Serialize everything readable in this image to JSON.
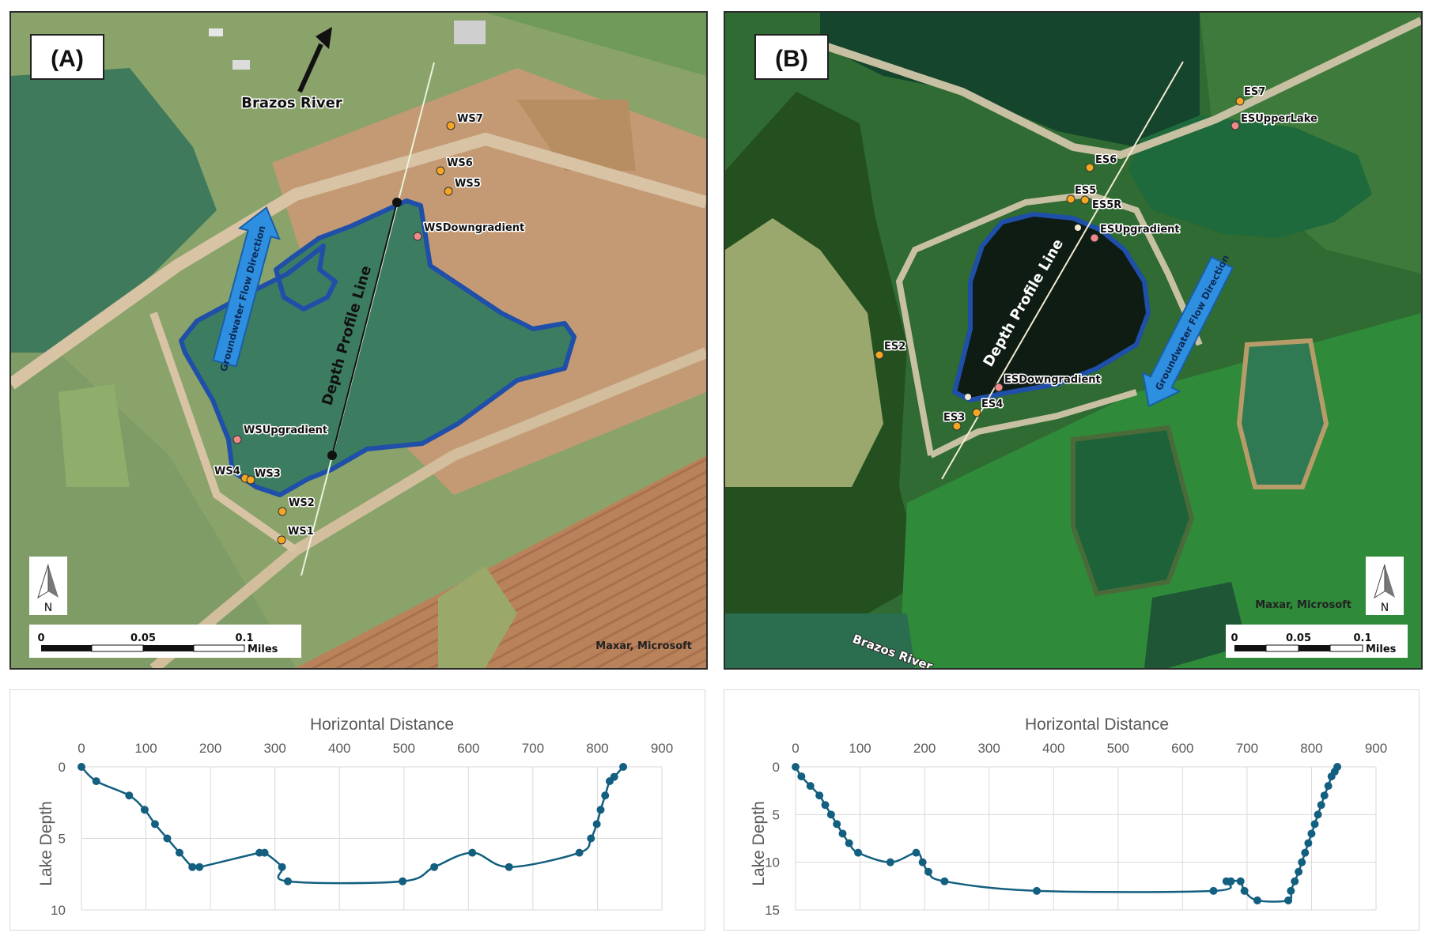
{
  "colors": {
    "lake_outline": "#1f4fa8",
    "flow_arrow": "#2e8fe0",
    "profile_line_a": "#111111",
    "profile_line_b": "#f3ead0",
    "orange_point": "#f5a623",
    "pink_point": "#f08a8a",
    "series": "#135f80"
  },
  "panel_a": {
    "label": "(A)",
    "river_label": "Brazos River",
    "flow_label": "Groundwater Flow Direction",
    "profile_label": "Depth Profile Line",
    "attribution": "Maxar, Microsoft",
    "north": "N",
    "scale": {
      "ticks": [
        "0",
        "0.05",
        "0.1"
      ],
      "unit": "Miles"
    },
    "points": [
      {
        "name": "WS7",
        "type": "orange"
      },
      {
        "name": "WS6",
        "type": "orange"
      },
      {
        "name": "WS5",
        "type": "orange"
      },
      {
        "name": "WSDowngradient",
        "type": "pink"
      },
      {
        "name": "WSUpgradient",
        "type": "pink"
      },
      {
        "name": "WS4",
        "type": "orange"
      },
      {
        "name": "WS3",
        "type": "orange"
      },
      {
        "name": "WS2",
        "type": "orange"
      },
      {
        "name": "WS1",
        "type": "orange"
      }
    ]
  },
  "panel_b": {
    "label": "(B)",
    "river_label": "Brazos River",
    "flow_label": "Groundwater Flow Direction",
    "profile_label": "Depth Profile Line",
    "attribution": "Maxar, Microsoft",
    "north": "N",
    "scale": {
      "ticks": [
        "0",
        "0.05",
        "0.1"
      ],
      "unit": "Miles"
    },
    "points": [
      {
        "name": "ES7",
        "type": "orange"
      },
      {
        "name": "ESUpperLake",
        "type": "pink"
      },
      {
        "name": "ES6",
        "type": "orange"
      },
      {
        "name": "ES5",
        "type": "orange"
      },
      {
        "name": "ES5R",
        "type": "orange"
      },
      {
        "name": "ESUpgradient",
        "type": "pink"
      },
      {
        "name": "ES2",
        "type": "orange"
      },
      {
        "name": "ESDowngradient",
        "type": "pink"
      },
      {
        "name": "ES4",
        "type": "orange"
      },
      {
        "name": "ES3",
        "type": "orange"
      }
    ]
  },
  "chart_data": [
    {
      "type": "line",
      "xlabel": "Horizontal Distance",
      "ylabel": "Lake Depth",
      "xlim": [
        0,
        900
      ],
      "ylim": [
        0,
        10
      ],
      "y_inverted": true,
      "x_axis_position": "top",
      "x_ticks": [
        "0",
        "100",
        "200",
        "300",
        "400",
        "500",
        "600",
        "700",
        "800",
        "900"
      ],
      "y_ticks": [
        "0",
        "5",
        "10"
      ],
      "grid": true,
      "x": [
        0,
        23,
        74,
        98,
        114,
        133,
        152,
        172,
        183,
        276,
        284,
        311,
        320,
        498,
        547,
        606,
        663,
        772,
        790,
        799,
        805,
        812,
        819,
        826,
        840
      ],
      "y": [
        0,
        1,
        2,
        3,
        4,
        5,
        6,
        7,
        7,
        6,
        6,
        7,
        8,
        8,
        7,
        6,
        7,
        6,
        5,
        4,
        3,
        2,
        1,
        0.7,
        0
      ]
    },
    {
      "type": "line",
      "xlabel": "Horizontal Distance",
      "ylabel": "Lake Depth",
      "xlim": [
        0,
        900
      ],
      "ylim": [
        0,
        15
      ],
      "y_inverted": true,
      "x_axis_position": "top",
      "x_ticks": [
        "0",
        "100",
        "200",
        "300",
        "400",
        "500",
        "600",
        "700",
        "800",
        "900"
      ],
      "y_ticks": [
        "0",
        "5",
        "10",
        "15"
      ],
      "grid": true,
      "x": [
        0,
        9,
        23,
        37,
        46,
        55,
        64,
        73,
        83,
        97,
        147,
        187,
        197,
        206,
        231,
        374,
        648,
        668,
        675,
        690,
        696,
        716,
        764,
        768,
        774,
        780,
        785,
        790,
        795,
        800,
        805,
        810,
        815,
        820,
        826,
        831,
        836,
        840
      ],
      "y": [
        0,
        1,
        2,
        3,
        4,
        5,
        6,
        7,
        8,
        9,
        10,
        9,
        10,
        11,
        12,
        13,
        13,
        12,
        12,
        12,
        13,
        14,
        14,
        13,
        12,
        11,
        10,
        9,
        8,
        7,
        6,
        5,
        4,
        3,
        2,
        1,
        0.5,
        0
      ]
    }
  ]
}
